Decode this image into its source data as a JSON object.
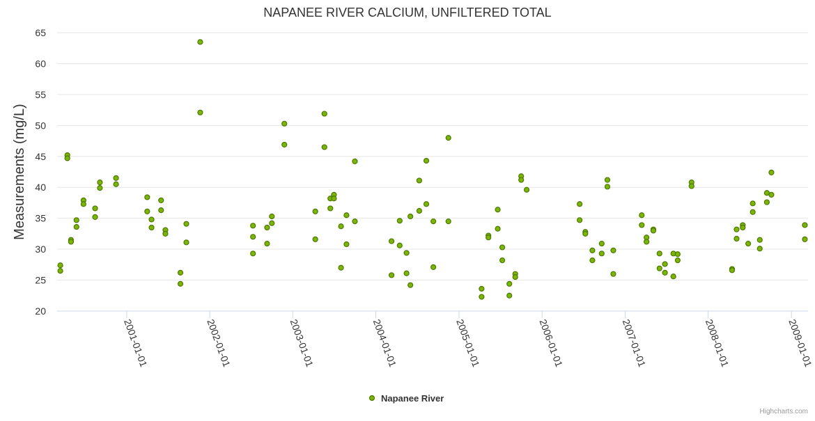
{
  "chart_data": {
    "type": "scatter",
    "title": "NAPANEE RIVER CALCIUM, UNFILTERED TOTAL",
    "ylabel": "Measurements (mg/L)",
    "xlabel": "",
    "ylim": [
      20,
      65
    ],
    "yticks": [
      20,
      25,
      30,
      35,
      40,
      45,
      50,
      55,
      60,
      65
    ],
    "xlim": [
      "2000-03-01",
      "2009-03-15"
    ],
    "xticks": [
      "2001-01-01",
      "2002-01-01",
      "2003-01-01",
      "2004-01-01",
      "2005-01-01",
      "2006-01-01",
      "2007-01-01",
      "2008-01-01",
      "2009-01-01"
    ],
    "grid": true,
    "legend_position": "bottom-center",
    "color": "#7cb40a",
    "marker_edge_color": "#4a7a00",
    "series": [
      {
        "name": "Napanee River",
        "points": [
          [
            "2000-03-15",
            27.4
          ],
          [
            "2000-03-15",
            26.5
          ],
          [
            "2000-04-15",
            45.2
          ],
          [
            "2000-04-15",
            44.7
          ],
          [
            "2000-05-01",
            31.5
          ],
          [
            "2000-05-01",
            31.2
          ],
          [
            "2000-05-25",
            34.7
          ],
          [
            "2000-05-25",
            33.6
          ],
          [
            "2000-06-25",
            37.9
          ],
          [
            "2000-06-25",
            37.3
          ],
          [
            "2000-08-15",
            36.6
          ],
          [
            "2000-08-15",
            35.2
          ],
          [
            "2000-09-05",
            40.8
          ],
          [
            "2000-09-05",
            39.9
          ],
          [
            "2000-11-15",
            41.5
          ],
          [
            "2000-11-15",
            40.5
          ],
          [
            "2001-04-01",
            38.4
          ],
          [
            "2001-04-01",
            36.1
          ],
          [
            "2001-04-20",
            34.8
          ],
          [
            "2001-04-20",
            33.5
          ],
          [
            "2001-06-01",
            37.9
          ],
          [
            "2001-06-01",
            36.3
          ],
          [
            "2001-06-20",
            33.1
          ],
          [
            "2001-06-20",
            32.5
          ],
          [
            "2001-08-25",
            26.2
          ],
          [
            "2001-08-25",
            24.4
          ],
          [
            "2001-09-20",
            34.1
          ],
          [
            "2001-09-20",
            31.1
          ],
          [
            "2001-11-20",
            63.5
          ],
          [
            "2001-11-20",
            52.1
          ],
          [
            "2002-07-10",
            33.8
          ],
          [
            "2002-07-10",
            32.0
          ],
          [
            "2002-07-10",
            29.3
          ],
          [
            "2002-09-10",
            33.5
          ],
          [
            "2002-09-10",
            30.9
          ],
          [
            "2002-10-01",
            35.3
          ],
          [
            "2002-10-01",
            34.2
          ],
          [
            "2002-11-25",
            50.3
          ],
          [
            "2002-11-25",
            46.9
          ],
          [
            "2003-04-10",
            36.1
          ],
          [
            "2003-04-10",
            31.6
          ],
          [
            "2003-05-20",
            51.9
          ],
          [
            "2003-05-20",
            46.5
          ],
          [
            "2003-06-15",
            38.2
          ],
          [
            "2003-06-15",
            36.6
          ],
          [
            "2003-07-01",
            38.8
          ],
          [
            "2003-07-01",
            38.2
          ],
          [
            "2003-08-01",
            33.7
          ],
          [
            "2003-08-01",
            27.0
          ],
          [
            "2003-08-25",
            35.5
          ],
          [
            "2003-08-25",
            30.8
          ],
          [
            "2003-10-01",
            44.2
          ],
          [
            "2003-10-01",
            34.5
          ],
          [
            "2004-03-10",
            31.3
          ],
          [
            "2004-03-10",
            25.8
          ],
          [
            "2004-04-15",
            34.6
          ],
          [
            "2004-04-15",
            30.6
          ],
          [
            "2004-05-15",
            29.4
          ],
          [
            "2004-05-15",
            26.1
          ],
          [
            "2004-06-01",
            35.3
          ],
          [
            "2004-06-01",
            24.2
          ],
          [
            "2004-07-10",
            41.1
          ],
          [
            "2004-07-10",
            36.2
          ],
          [
            "2004-08-10",
            44.3
          ],
          [
            "2004-08-10",
            37.3
          ],
          [
            "2004-09-10",
            34.5
          ],
          [
            "2004-09-10",
            27.1
          ],
          [
            "2004-11-15",
            48.0
          ],
          [
            "2004-11-15",
            34.5
          ],
          [
            "2005-04-10",
            23.6
          ],
          [
            "2005-04-10",
            22.3
          ],
          [
            "2005-05-10",
            32.2
          ],
          [
            "2005-05-10",
            31.9
          ],
          [
            "2005-06-20",
            36.4
          ],
          [
            "2005-06-20",
            33.3
          ],
          [
            "2005-07-10",
            30.3
          ],
          [
            "2005-07-10",
            28.2
          ],
          [
            "2005-08-10",
            24.4
          ],
          [
            "2005-08-10",
            22.5
          ],
          [
            "2005-09-05",
            26.0
          ],
          [
            "2005-09-05",
            25.5
          ],
          [
            "2005-10-01",
            41.8
          ],
          [
            "2005-10-01",
            41.2
          ],
          [
            "2005-10-25",
            39.6
          ],
          [
            "2006-06-15",
            37.3
          ],
          [
            "2006-06-15",
            34.7
          ],
          [
            "2006-07-10",
            32.8
          ],
          [
            "2006-07-10",
            32.5
          ],
          [
            "2006-08-10",
            29.8
          ],
          [
            "2006-08-10",
            28.2
          ],
          [
            "2006-09-20",
            30.9
          ],
          [
            "2006-09-20",
            29.3
          ],
          [
            "2006-10-15",
            41.2
          ],
          [
            "2006-10-15",
            40.1
          ],
          [
            "2006-11-10",
            29.8
          ],
          [
            "2006-11-10",
            26.0
          ],
          [
            "2007-03-15",
            35.5
          ],
          [
            "2007-03-15",
            33.9
          ],
          [
            "2007-04-05",
            31.9
          ],
          [
            "2007-04-05",
            31.2
          ],
          [
            "2007-05-05",
            33.2
          ],
          [
            "2007-05-05",
            33.0
          ],
          [
            "2007-06-01",
            29.3
          ],
          [
            "2007-06-01",
            26.9
          ],
          [
            "2007-06-25",
            27.6
          ],
          [
            "2007-06-25",
            26.2
          ],
          [
            "2007-08-01",
            29.3
          ],
          [
            "2007-08-01",
            25.6
          ],
          [
            "2007-08-20",
            29.2
          ],
          [
            "2007-08-20",
            28.2
          ],
          [
            "2007-10-20",
            40.8
          ],
          [
            "2007-10-20",
            40.2
          ],
          [
            "2008-04-15",
            26.8
          ],
          [
            "2008-04-15",
            26.6
          ],
          [
            "2008-05-05",
            33.2
          ],
          [
            "2008-05-05",
            31.7
          ],
          [
            "2008-06-01",
            33.9
          ],
          [
            "2008-06-01",
            33.5
          ],
          [
            "2008-06-25",
            30.9
          ],
          [
            "2008-07-15",
            37.4
          ],
          [
            "2008-07-15",
            36.0
          ],
          [
            "2008-08-15",
            31.5
          ],
          [
            "2008-08-15",
            30.1
          ],
          [
            "2008-09-15",
            39.1
          ],
          [
            "2008-09-15",
            37.6
          ],
          [
            "2008-10-05",
            42.4
          ],
          [
            "2008-10-05",
            38.8
          ],
          [
            "2009-03-01",
            33.9
          ],
          [
            "2009-03-01",
            31.6
          ]
        ]
      }
    ]
  },
  "credits": "Highcharts.com"
}
